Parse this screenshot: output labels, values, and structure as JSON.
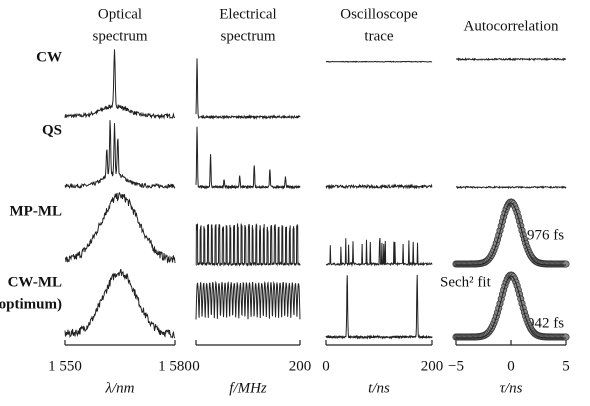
{
  "columns": [
    {
      "title": [
        "Optical",
        "spectrum"
      ],
      "ticks": [
        "1 550",
        "1 580"
      ],
      "axis_label": "λ/nm"
    },
    {
      "title": [
        "Electrical",
        "spectrum"
      ],
      "ticks": [
        "0",
        "200"
      ],
      "axis_label": "f/MHz"
    },
    {
      "title": [
        "Oscilloscope",
        "trace"
      ],
      "ticks": [
        "0",
        "200"
      ],
      "axis_label": "t/ns"
    },
    {
      "title": [
        "Autocorrelation"
      ],
      "ticks": [
        "−5",
        "0",
        "5"
      ],
      "axis_label": "τ/ns"
    }
  ],
  "rows": [
    [
      "CW"
    ],
    [
      "QS"
    ],
    [
      "MP-ML"
    ],
    [
      "CW-ML",
      "(optimum)"
    ]
  ],
  "annotations": {
    "mp_width": "976 fs",
    "fit": "Sech² fit",
    "cw_width": "942 fs"
  }
}
